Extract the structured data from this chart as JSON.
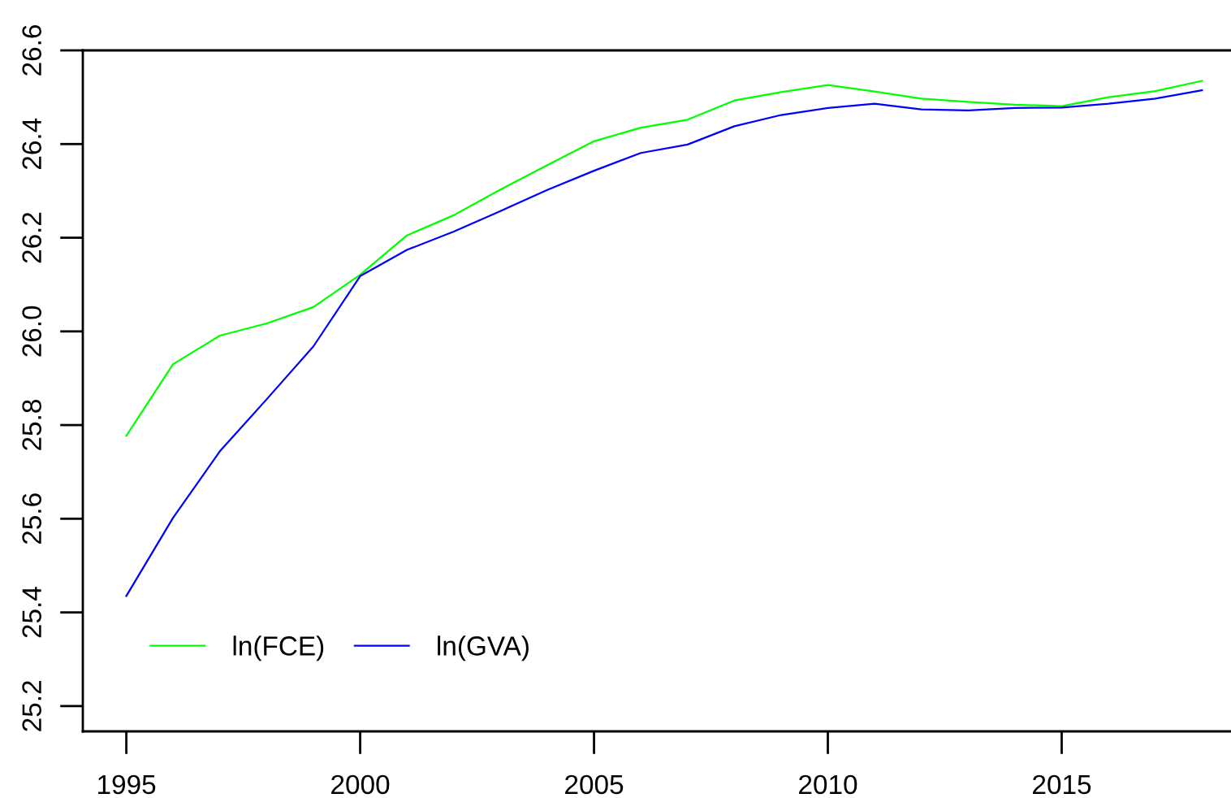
{
  "chart_data": {
    "type": "line",
    "x": [
      1995,
      1996,
      1997,
      1998,
      1999,
      2000,
      2001,
      2002,
      2003,
      2004,
      2005,
      2006,
      2007,
      2008,
      2009,
      2010,
      2011,
      2012,
      2013,
      2014,
      2015,
      2016,
      2017,
      2018
    ],
    "series": [
      {
        "name": "ln(FCE)",
        "color": "#00ff00",
        "values": [
          25.777,
          25.93,
          25.991,
          26.017,
          26.052,
          26.121,
          26.205,
          26.248,
          26.303,
          26.355,
          26.406,
          26.435,
          26.452,
          26.493,
          26.511,
          26.526,
          26.512,
          26.497,
          26.49,
          26.484,
          26.481,
          26.5,
          26.513,
          26.535
        ]
      },
      {
        "name": "ln(GVA)",
        "color": "#0000ff",
        "values": [
          25.435,
          25.602,
          25.744,
          25.855,
          25.968,
          26.118,
          26.174,
          26.213,
          26.257,
          26.302,
          26.343,
          26.381,
          26.399,
          26.438,
          26.462,
          26.477,
          26.486,
          26.474,
          26.472,
          26.477,
          26.478,
          26.486,
          26.497,
          26.515
        ]
      }
    ],
    "xlim": [
      1994.07,
      2018.62
    ],
    "xticks": [
      1995,
      2000,
      2005,
      2010,
      2015
    ],
    "ylim": [
      25.146,
      26.6
    ],
    "yticks": [
      25.2,
      25.4,
      25.6,
      25.8,
      {
        "value": 26,
        "label": "26.0"
      },
      26.2,
      26.4,
      26.6
    ],
    "legend": "bottom left",
    "line_style": "solid"
  }
}
